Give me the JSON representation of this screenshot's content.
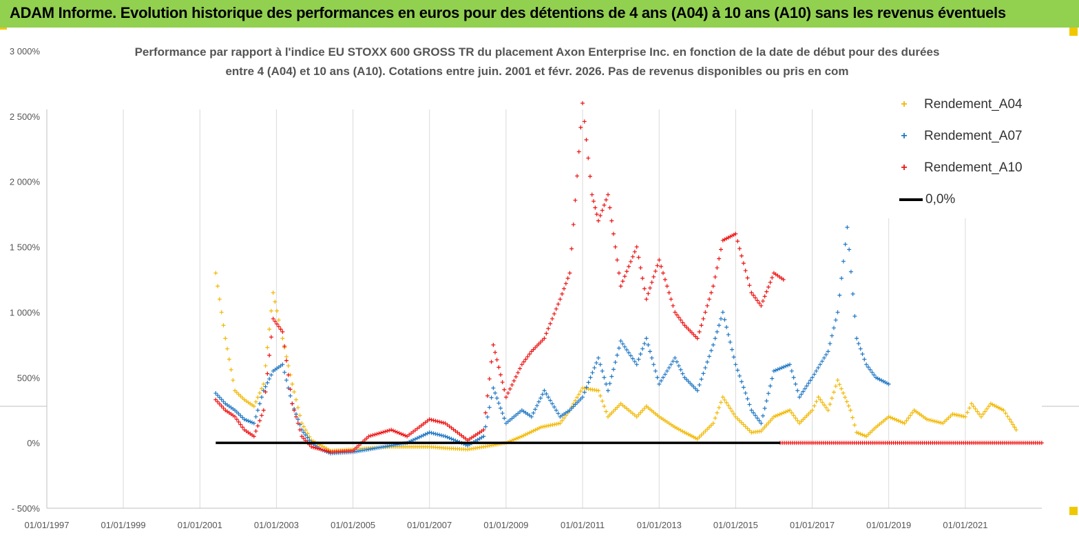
{
  "header": {
    "title": "ADAM Informe. Evolution historique des performances en euros pour des détentions de 4 ans (A04) à 10 ans (A10) sans les revenus éventuels"
  },
  "colors": {
    "banner": "#92d050",
    "a04": "#f2b800",
    "a07": "#1f77c4",
    "a10": "#ee1111",
    "zero": "#000000"
  },
  "chart_data": {
    "type": "scatter",
    "title_line1": "Performance par rapport à l'indice EU STOXX 600 GROSS TR  du placement Axon Enterprise Inc. en fonction de la date de début pour des durées",
    "title_line2": "entre 4 (A04) et 10 ans (A10). Cotations entre juin. 2001 et févr. 2026. Pas de revenus disponibles ou pris en com",
    "xlabel": "",
    "ylabel": "",
    "x_range": [
      "01/01/1997",
      "01/01/2023"
    ],
    "x_ticks": [
      "01/01/1997",
      "01/01/1999",
      "01/01/2001",
      "01/01/2003",
      "01/01/2005",
      "01/01/2007",
      "01/01/2009",
      "01/01/2011",
      "01/01/2013",
      "01/01/2015",
      "01/01/2017",
      "01/01/2019",
      "01/01/2021"
    ],
    "ylim": [
      -500,
      3000
    ],
    "y_ticks": [
      -500,
      0,
      500,
      1000,
      1500,
      2000,
      2500,
      3000
    ],
    "y_tick_labels": [
      "- 500%",
      "0%",
      "500%",
      "1 000%",
      "1 500%",
      "2 000%",
      "2 500%",
      "3 000%"
    ],
    "legend_position": "top-right",
    "grid": "vertical",
    "series": [
      {
        "name": "Rendement_A04",
        "marker": "+",
        "points": [
          [
            "2001-06-01",
            1300
          ],
          [
            "2001-09-01",
            800
          ],
          [
            "2001-12-01",
            400
          ],
          [
            "2002-03-01",
            330
          ],
          [
            "2002-06-01",
            280
          ],
          [
            "2002-09-01",
            450
          ],
          [
            "2002-12-01",
            1150
          ],
          [
            "2003-03-01",
            800
          ],
          [
            "2003-06-01",
            450
          ],
          [
            "2003-09-01",
            150
          ],
          [
            "2003-12-01",
            20
          ],
          [
            "2004-06-01",
            -60
          ],
          [
            "2005-01-01",
            -50
          ],
          [
            "2005-06-01",
            -40
          ],
          [
            "2006-01-01",
            -30
          ],
          [
            "2006-06-01",
            -30
          ],
          [
            "2007-01-01",
            -30
          ],
          [
            "2007-06-01",
            -40
          ],
          [
            "2008-01-01",
            -50
          ],
          [
            "2008-06-01",
            -30
          ],
          [
            "2009-01-01",
            0
          ],
          [
            "2009-06-01",
            50
          ],
          [
            "2009-12-01",
            120
          ],
          [
            "2010-06-01",
            150
          ],
          [
            "2010-09-01",
            250
          ],
          [
            "2011-01-01",
            420
          ],
          [
            "2011-06-01",
            400
          ],
          [
            "2011-09-01",
            200
          ],
          [
            "2012-01-01",
            300
          ],
          [
            "2012-06-01",
            200
          ],
          [
            "2012-09-01",
            280
          ],
          [
            "2013-01-01",
            200
          ],
          [
            "2013-06-01",
            120
          ],
          [
            "2013-09-01",
            80
          ],
          [
            "2014-01-01",
            30
          ],
          [
            "2014-06-01",
            150
          ],
          [
            "2014-09-01",
            350
          ],
          [
            "2015-01-01",
            200
          ],
          [
            "2015-06-01",
            80
          ],
          [
            "2015-09-01",
            90
          ],
          [
            "2016-01-01",
            200
          ],
          [
            "2016-06-01",
            250
          ],
          [
            "2016-09-01",
            150
          ],
          [
            "2017-01-01",
            250
          ],
          [
            "2017-03-01",
            350
          ],
          [
            "2017-06-01",
            250
          ],
          [
            "2017-09-01",
            480
          ],
          [
            "2018-01-01",
            250
          ],
          [
            "2018-03-01",
            80
          ],
          [
            "2018-06-01",
            50
          ],
          [
            "2018-09-01",
            120
          ],
          [
            "2019-01-01",
            200
          ],
          [
            "2019-06-01",
            150
          ],
          [
            "2019-09-01",
            250
          ],
          [
            "2020-01-01",
            180
          ],
          [
            "2020-06-01",
            150
          ],
          [
            "2020-09-01",
            220
          ],
          [
            "2021-01-01",
            200
          ],
          [
            "2021-03-01",
            300
          ],
          [
            "2021-06-01",
            200
          ],
          [
            "2021-09-01",
            300
          ],
          [
            "2022-01-01",
            250
          ],
          [
            "2022-03-01",
            180
          ],
          [
            "2022-05-01",
            100
          ]
        ]
      },
      {
        "name": "Rendement_A07",
        "marker": "+",
        "points": [
          [
            "2001-06-01",
            380
          ],
          [
            "2001-09-01",
            300
          ],
          [
            "2001-12-01",
            250
          ],
          [
            "2002-03-01",
            180
          ],
          [
            "2002-06-01",
            150
          ],
          [
            "2002-09-01",
            400
          ],
          [
            "2002-12-01",
            550
          ],
          [
            "2003-03-01",
            600
          ],
          [
            "2003-06-01",
            300
          ],
          [
            "2003-09-01",
            100
          ],
          [
            "2003-12-01",
            0
          ],
          [
            "2004-03-01",
            -50
          ],
          [
            "2004-06-01",
            -80
          ],
          [
            "2005-01-01",
            -70
          ],
          [
            "2005-06-01",
            -50
          ],
          [
            "2006-01-01",
            -20
          ],
          [
            "2006-06-01",
            0
          ],
          [
            "2007-01-01",
            80
          ],
          [
            "2007-06-01",
            50
          ],
          [
            "2008-01-01",
            -20
          ],
          [
            "2008-06-01",
            50
          ],
          [
            "2008-09-01",
            420
          ],
          [
            "2009-01-01",
            150
          ],
          [
            "2009-06-01",
            250
          ],
          [
            "2009-09-01",
            200
          ],
          [
            "2010-01-01",
            400
          ],
          [
            "2010-06-01",
            200
          ],
          [
            "2010-09-01",
            250
          ],
          [
            "2011-01-01",
            350
          ],
          [
            "2011-06-01",
            650
          ],
          [
            "2011-09-01",
            400
          ],
          [
            "2012-01-01",
            780
          ],
          [
            "2012-06-01",
            600
          ],
          [
            "2012-09-01",
            800
          ],
          [
            "2013-01-01",
            450
          ],
          [
            "2013-06-01",
            650
          ],
          [
            "2013-09-01",
            500
          ],
          [
            "2014-01-01",
            400
          ],
          [
            "2014-06-01",
            750
          ],
          [
            "2014-09-01",
            1000
          ],
          [
            "2015-01-01",
            600
          ],
          [
            "2015-06-01",
            250
          ],
          [
            "2015-09-01",
            150
          ],
          [
            "2016-01-01",
            550
          ],
          [
            "2016-06-01",
            600
          ],
          [
            "2016-09-01",
            350
          ],
          [
            "2017-01-01",
            500
          ],
          [
            "2017-06-01",
            700
          ],
          [
            "2017-09-01",
            1000
          ],
          [
            "2017-12-01",
            1650
          ],
          [
            "2018-03-01",
            800
          ],
          [
            "2018-06-01",
            600
          ],
          [
            "2018-09-01",
            500
          ],
          [
            "2019-01-01",
            450
          ]
        ]
      },
      {
        "name": "Rendement_A10",
        "marker": "+",
        "points": [
          [
            "2001-06-01",
            330
          ],
          [
            "2001-09-01",
            250
          ],
          [
            "2001-12-01",
            200
          ],
          [
            "2002-03-01",
            100
          ],
          [
            "2002-06-01",
            50
          ],
          [
            "2002-09-01",
            250
          ],
          [
            "2002-12-01",
            950
          ],
          [
            "2003-03-01",
            850
          ],
          [
            "2003-06-01",
            300
          ],
          [
            "2003-09-01",
            50
          ],
          [
            "2003-12-01",
            -30
          ],
          [
            "2004-06-01",
            -70
          ],
          [
            "2005-01-01",
            -60
          ],
          [
            "2005-06-01",
            50
          ],
          [
            "2006-01-01",
            100
          ],
          [
            "2006-06-01",
            50
          ],
          [
            "2007-01-01",
            180
          ],
          [
            "2007-06-01",
            150
          ],
          [
            "2008-01-01",
            20
          ],
          [
            "2008-06-01",
            100
          ],
          [
            "2008-09-01",
            750
          ],
          [
            "2009-01-01",
            350
          ],
          [
            "2009-06-01",
            600
          ],
          [
            "2009-09-01",
            700
          ],
          [
            "2010-01-01",
            800
          ],
          [
            "2010-06-01",
            1100
          ],
          [
            "2010-09-01",
            1300
          ],
          [
            "2011-01-01",
            2600
          ],
          [
            "2011-04-01",
            1900
          ],
          [
            "2011-06-01",
            1700
          ],
          [
            "2011-09-01",
            1900
          ],
          [
            "2012-01-01",
            1200
          ],
          [
            "2012-06-01",
            1500
          ],
          [
            "2012-09-01",
            1100
          ],
          [
            "2013-01-01",
            1400
          ],
          [
            "2013-06-01",
            1000
          ],
          [
            "2013-09-01",
            900
          ],
          [
            "2014-01-01",
            800
          ],
          [
            "2014-06-01",
            1200
          ],
          [
            "2014-09-01",
            1550
          ],
          [
            "2015-01-01",
            1600
          ],
          [
            "2015-06-01",
            1150
          ],
          [
            "2015-09-01",
            1050
          ],
          [
            "2016-01-01",
            1300
          ],
          [
            "2016-04-01",
            1250
          ]
        ]
      },
      {
        "name": "Rendement_A10",
        "marker": "+",
        "points": [
          [
            "2016-03-01",
            0
          ],
          [
            "2022-12-31",
            0
          ]
        ]
      },
      {
        "name": "0,0%",
        "marker": "line",
        "points": [
          [
            "2001-06-01",
            0
          ],
          [
            "2016-03-01",
            0
          ]
        ]
      }
    ]
  }
}
